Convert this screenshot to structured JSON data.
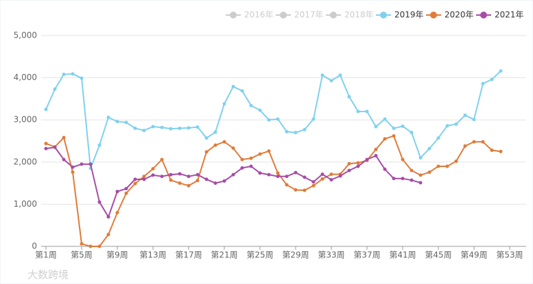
{
  "chart_data": {
    "type": "line",
    "categories": [
      "第1周",
      null,
      null,
      null,
      "第5周",
      null,
      null,
      null,
      "第9周",
      null,
      null,
      null,
      "第13周",
      null,
      null,
      null,
      "第17周",
      null,
      null,
      null,
      "第21周",
      null,
      null,
      null,
      "第25周",
      null,
      null,
      null,
      "第29周",
      null,
      null,
      null,
      "第33周",
      null,
      null,
      null,
      "第37周",
      null,
      null,
      null,
      "第41周",
      null,
      null,
      null,
      "第45周",
      null,
      null,
      null,
      "第49周",
      null,
      null,
      null,
      "第53周"
    ],
    "ylim": [
      0,
      5000
    ],
    "yticks": [
      0,
      {
        "value": 1000,
        "label": "1,000"
      },
      {
        "value": 2000,
        "label": "2,000"
      },
      {
        "value": 3000,
        "label": "3,000"
      },
      {
        "value": 4000,
        "label": "4,000"
      },
      {
        "value": 5000,
        "label": "5,000"
      }
    ],
    "grid": true,
    "legend": "top-right",
    "hidden_legend": [
      {
        "name": "2016年",
        "color": "#cccccc"
      },
      {
        "name": "2017年",
        "color": "#cccccc"
      },
      {
        "name": "2018年",
        "color": "#cccccc"
      }
    ],
    "series": [
      {
        "name": "2019年",
        "color": "#7fd1ee",
        "values": [
          3250,
          3730,
          4080,
          4090,
          3990,
          1850,
          2400,
          3060,
          2960,
          2940,
          2800,
          2750,
          2840,
          2820,
          2790,
          2800,
          2810,
          2830,
          2570,
          2710,
          3380,
          3790,
          3690,
          3340,
          3230,
          3000,
          3020,
          2720,
          2700,
          2770,
          3020,
          4060,
          3930,
          4060,
          3550,
          3200,
          3200,
          2840,
          3020,
          2800,
          2850,
          2700,
          2100,
          2320,
          2570,
          2860,
          2900,
          3110,
          3010,
          3860,
          3960,
          4160,
          null
        ]
      },
      {
        "name": "2020年",
        "color": "#e07b39",
        "values": [
          2440,
          2360,
          2580,
          1760,
          60,
          0,
          0,
          280,
          800,
          1260,
          1490,
          1660,
          1840,
          2060,
          1570,
          1500,
          1440,
          1560,
          2240,
          2400,
          2480,
          2330,
          2060,
          2090,
          2190,
          2260,
          1740,
          1460,
          1340,
          1330,
          1440,
          1600,
          1710,
          1710,
          1960,
          1980,
          2040,
          2300,
          2550,
          2620,
          2060,
          1800,
          1690,
          1760,
          1900,
          1900,
          2020,
          2380,
          2480,
          2480,
          2280,
          2250,
          null
        ]
      },
      {
        "name": "2021年",
        "color": "#a64ca6",
        "values": [
          2320,
          2350,
          2060,
          1880,
          1950,
          1950,
          1050,
          700,
          1300,
          1370,
          1590,
          1590,
          1690,
          1660,
          1700,
          1720,
          1660,
          1700,
          1590,
          1500,
          1550,
          1700,
          1860,
          1900,
          1740,
          1700,
          1660,
          1660,
          1750,
          1640,
          1530,
          1710,
          1580,
          1670,
          1800,
          1900,
          2060,
          2150,
          1830,
          1610,
          1610,
          1570,
          1510,
          null,
          null,
          null,
          null,
          null,
          null,
          null,
          null,
          null,
          null
        ]
      }
    ],
    "watermark": "大数跨境"
  }
}
